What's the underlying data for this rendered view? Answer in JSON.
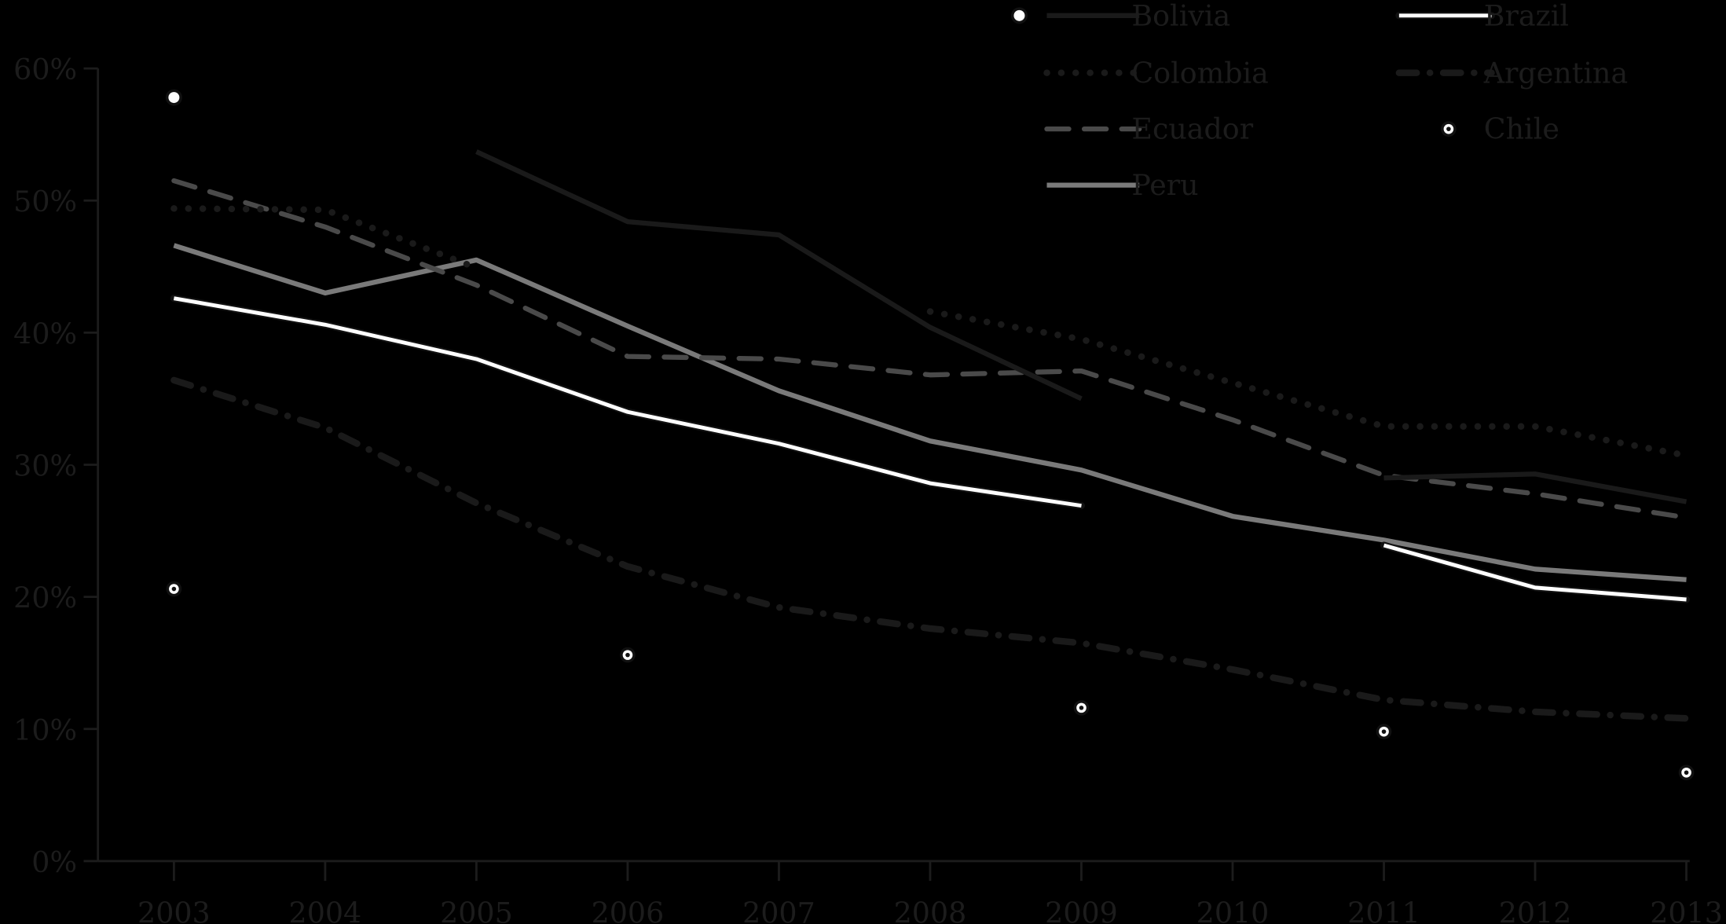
{
  "chart_data": {
    "type": "line",
    "title": "",
    "xlabel": "",
    "ylabel": "",
    "x": [
      2003,
      2004,
      2005,
      2006,
      2007,
      2008,
      2009,
      2010,
      2011,
      2012,
      2013
    ],
    "x_tick_labels": [
      "2003",
      "2004",
      "2005",
      "2006",
      "2007",
      "2008",
      "2009",
      "2010",
      "2011",
      "2012",
      "2013"
    ],
    "y_tick_labels": [
      "0%",
      "10%",
      "20%",
      "30%",
      "40%",
      "50%",
      "60%"
    ],
    "ylim": [
      0,
      60
    ],
    "grid": false,
    "legend_position": "top-right",
    "series": [
      {
        "name": "Bolivia",
        "style": "solid",
        "color": "#1a1a1a",
        "values": [
          57.8,
          null,
          53.7,
          48.4,
          47.4,
          40.4,
          35.0,
          null,
          29.0,
          29.3,
          27.2
        ]
      },
      {
        "name": "Brazil",
        "style": "solid-white",
        "color": "#ffffff",
        "values": [
          42.6,
          40.6,
          38.0,
          34.0,
          31.6,
          28.6,
          26.9,
          null,
          23.9,
          20.7,
          19.8
        ]
      },
      {
        "name": "Colombia",
        "style": "dotted",
        "color": "#1a1a1a",
        "values": [
          49.4,
          49.3,
          44.9,
          null,
          null,
          41.6,
          39.5,
          36.2,
          32.9,
          32.9,
          30.7
        ]
      },
      {
        "name": "Argentina",
        "style": "dash-dot",
        "color": "#1a1a1a",
        "values": [
          36.4,
          32.8,
          27.1,
          22.3,
          19.2,
          17.6,
          16.5,
          14.5,
          12.2,
          11.3,
          10.8
        ]
      },
      {
        "name": "Ecuador",
        "style": "dashed",
        "color": "#4a4a4a",
        "values": [
          51.5,
          48.0,
          43.6,
          38.2,
          38.0,
          36.8,
          37.1,
          33.4,
          29.2,
          27.8,
          26.0
        ]
      },
      {
        "name": "Chile",
        "style": "marker-ring",
        "color": "#ffffff",
        "values": [
          20.6,
          null,
          null,
          15.6,
          null,
          null,
          11.6,
          null,
          9.8,
          null,
          6.7
        ]
      },
      {
        "name": "Peru",
        "style": "solid-gray",
        "color": "#7a7a7a",
        "values": [
          46.6,
          43.0,
          45.5,
          40.5,
          35.6,
          31.8,
          29.6,
          26.1,
          24.3,
          22.1,
          21.3
        ]
      }
    ]
  },
  "legend": {
    "items": [
      {
        "label": "Bolivia"
      },
      {
        "label": "Brazil"
      },
      {
        "label": "Colombia"
      },
      {
        "label": "Argentina"
      },
      {
        "label": "Ecuador"
      },
      {
        "label": "Chile"
      },
      {
        "label": "Peru"
      }
    ]
  }
}
